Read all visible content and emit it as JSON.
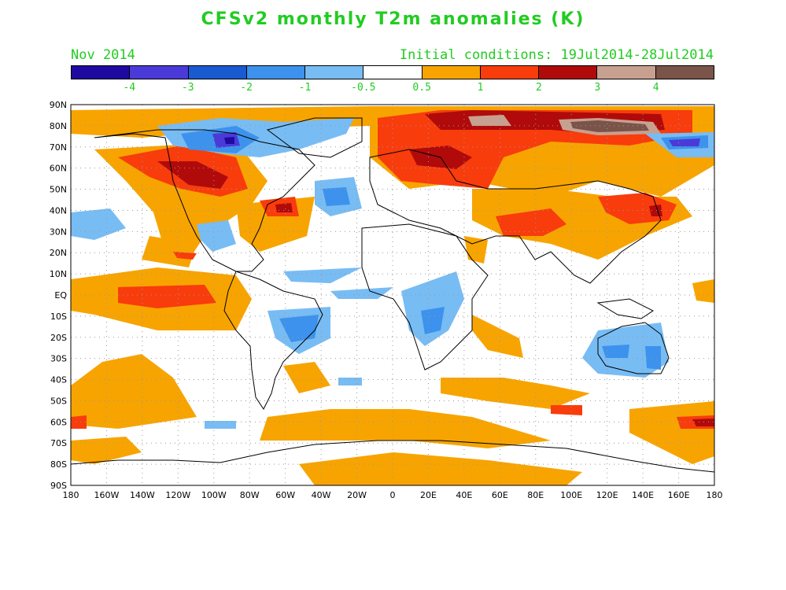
{
  "title": "CFSv2 monthly T2m anomalies (K)",
  "subtitle_left": "Nov 2014",
  "subtitle_right": "Initial conditions: 19Jul2014-28Jul2014",
  "colorbar": {
    "colors": [
      "#1e0aa0",
      "#4a3ad8",
      "#1a5ad0",
      "#3c92ec",
      "#78bcf4",
      "#ffffff",
      "#f7a400",
      "#f83c0c",
      "#b00a0a",
      "#c8a090",
      "#7a5448"
    ],
    "labels": [
      "-4",
      "-3",
      "-2",
      "-1",
      "-0.5",
      "0.5",
      "1",
      "2",
      "3",
      "4"
    ]
  },
  "axes": {
    "lat_labels": [
      "90N",
      "80N",
      "70N",
      "60N",
      "50N",
      "40N",
      "30N",
      "20N",
      "10N",
      "EQ",
      "10S",
      "20S",
      "30S",
      "40S",
      "50S",
      "60S",
      "70S",
      "80S",
      "90S"
    ],
    "lon_labels": [
      "180",
      "160W",
      "140W",
      "120W",
      "100W",
      "80W",
      "60W",
      "40W",
      "20W",
      "0",
      "20E",
      "40E",
      "60E",
      "80E",
      "100E",
      "120E",
      "140E",
      "160E",
      "180"
    ]
  }
}
